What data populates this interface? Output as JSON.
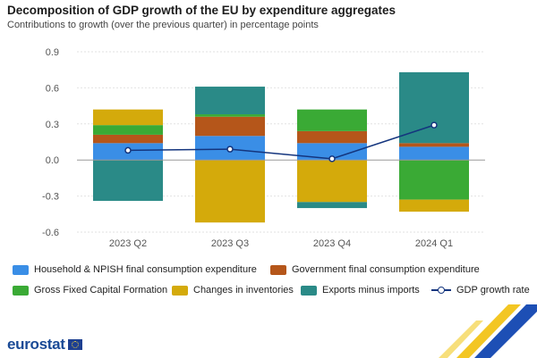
{
  "header": {
    "title": "Decomposition of GDP growth of the EU by expenditure aggregates",
    "subtitle": "Contributions to growth (over the previous quarter) in percentage points"
  },
  "chart_data": {
    "type": "bar",
    "stacked": true,
    "categories": [
      "2023 Q2",
      "2023 Q3",
      "2023 Q4",
      "2024 Q1"
    ],
    "ylim": [
      -0.6,
      0.9
    ],
    "yticks": [
      "0.9",
      "0.6",
      "0.3",
      "0.0",
      "-0.3",
      "-0.6"
    ],
    "grid": true,
    "legend_position": "bottom",
    "series": [
      {
        "name": "Household & NPISH final consumption expenditure",
        "color": "#3a8ee6",
        "values": [
          0.14,
          0.2,
          0.14,
          0.11
        ]
      },
      {
        "name": "Government final consumption expenditure",
        "color": "#b5561a",
        "values": [
          0.07,
          0.16,
          0.1,
          0.03
        ]
      },
      {
        "name": "Gross Fixed Capital Formation",
        "color": "#3aaa35",
        "values": [
          0.08,
          0.02,
          0.18,
          -0.33
        ]
      },
      {
        "name": "Changes in inventories",
        "color": "#d4aa0b",
        "values": [
          0.13,
          -0.52,
          -0.35,
          -0.1
        ]
      },
      {
        "name": "Exports minus imports",
        "color": "#2a8a87",
        "values": [
          -0.34,
          0.23,
          -0.05,
          0.59
        ]
      }
    ],
    "line": {
      "name": "GDP growth rate",
      "color": "#14357e",
      "values": [
        0.08,
        0.09,
        0.01,
        0.29
      ]
    }
  },
  "footer": {
    "logo": "eurostat"
  }
}
